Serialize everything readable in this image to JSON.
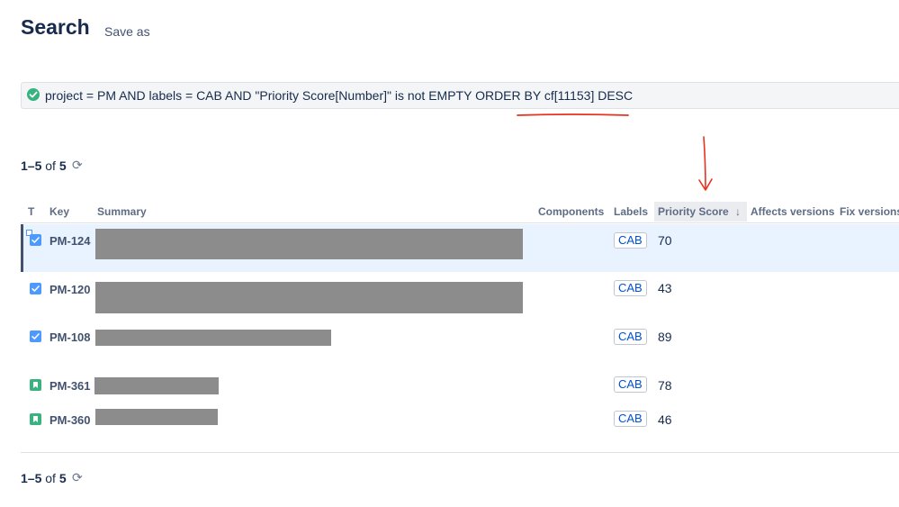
{
  "header": {
    "title": "Search",
    "save_as": "Save as"
  },
  "jql": {
    "query": "project = PM AND labels = CAB AND \"Priority Score[Number]\" is not EMPTY ORDER BY cf[11153] DESC"
  },
  "pager_top": {
    "range": "1–5",
    "of_word": "of",
    "total": "5"
  },
  "pager_bottom": {
    "range": "1–5",
    "of_word": "of",
    "total": "5"
  },
  "columns": {
    "type": "T",
    "key": "Key",
    "summary": "Summary",
    "components": "Components",
    "labels": "Labels",
    "priority_score": "Priority Score",
    "sort_arrow": "↓",
    "affects_versions": "Affects versions",
    "fix_versions": "Fix versions"
  },
  "rows": [
    {
      "type": "task-icon",
      "key": "PM-124",
      "label": "CAB",
      "score": "70",
      "selected": true
    },
    {
      "type": "task-icon",
      "key": "PM-120",
      "label": "CAB",
      "score": "43"
    },
    {
      "type": "task-icon",
      "key": "PM-108",
      "label": "CAB",
      "score": "89"
    },
    {
      "type": "story-icon",
      "key": "PM-361",
      "label": "CAB",
      "score": "78"
    },
    {
      "type": "story-icon",
      "key": "PM-360",
      "label": "CAB",
      "score": "46"
    }
  ],
  "icons": {
    "valid_query": "check-circle-icon",
    "refresh": "refresh-icon",
    "sort": "arrow-down-icon"
  },
  "colors": {
    "accent": "#0052cc",
    "valid": "#36b37e",
    "task": "#4c9aff",
    "story": "#36b37e",
    "annotation": "#e8321e",
    "selected_row": "#e9f2ff"
  }
}
